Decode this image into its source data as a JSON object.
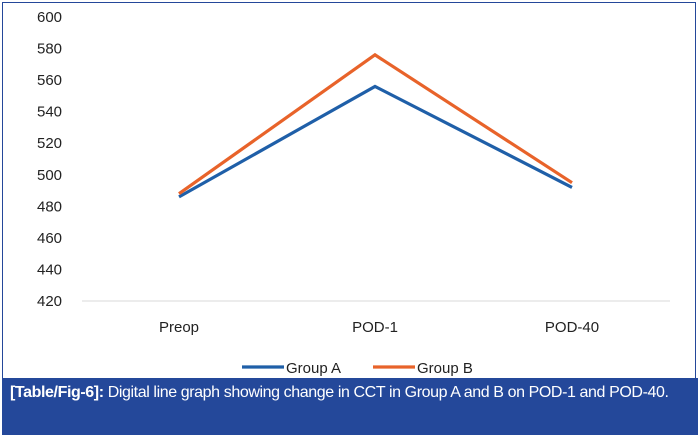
{
  "chart_data": {
    "type": "line",
    "title": "",
    "xlabel": "",
    "ylabel": "",
    "categories": [
      "Preop",
      "POD-1",
      "POD-40"
    ],
    "ylim": [
      420,
      600
    ],
    "yticks": [
      420,
      440,
      460,
      480,
      500,
      520,
      540,
      560,
      580,
      600
    ],
    "grid": false,
    "legend_position": "bottom",
    "series": [
      {
        "name": "Group  A",
        "color": "#1f5fa8",
        "values": [
          486,
          556,
          492
        ]
      },
      {
        "name": "Group B",
        "color": "#e8632a",
        "values": [
          488,
          576,
          495
        ]
      }
    ]
  },
  "caption": {
    "label": "[Table/Fig-6]:",
    "text": " Digital line graph showing change in CCT in Group A and B on POD-1 and POD-40."
  }
}
